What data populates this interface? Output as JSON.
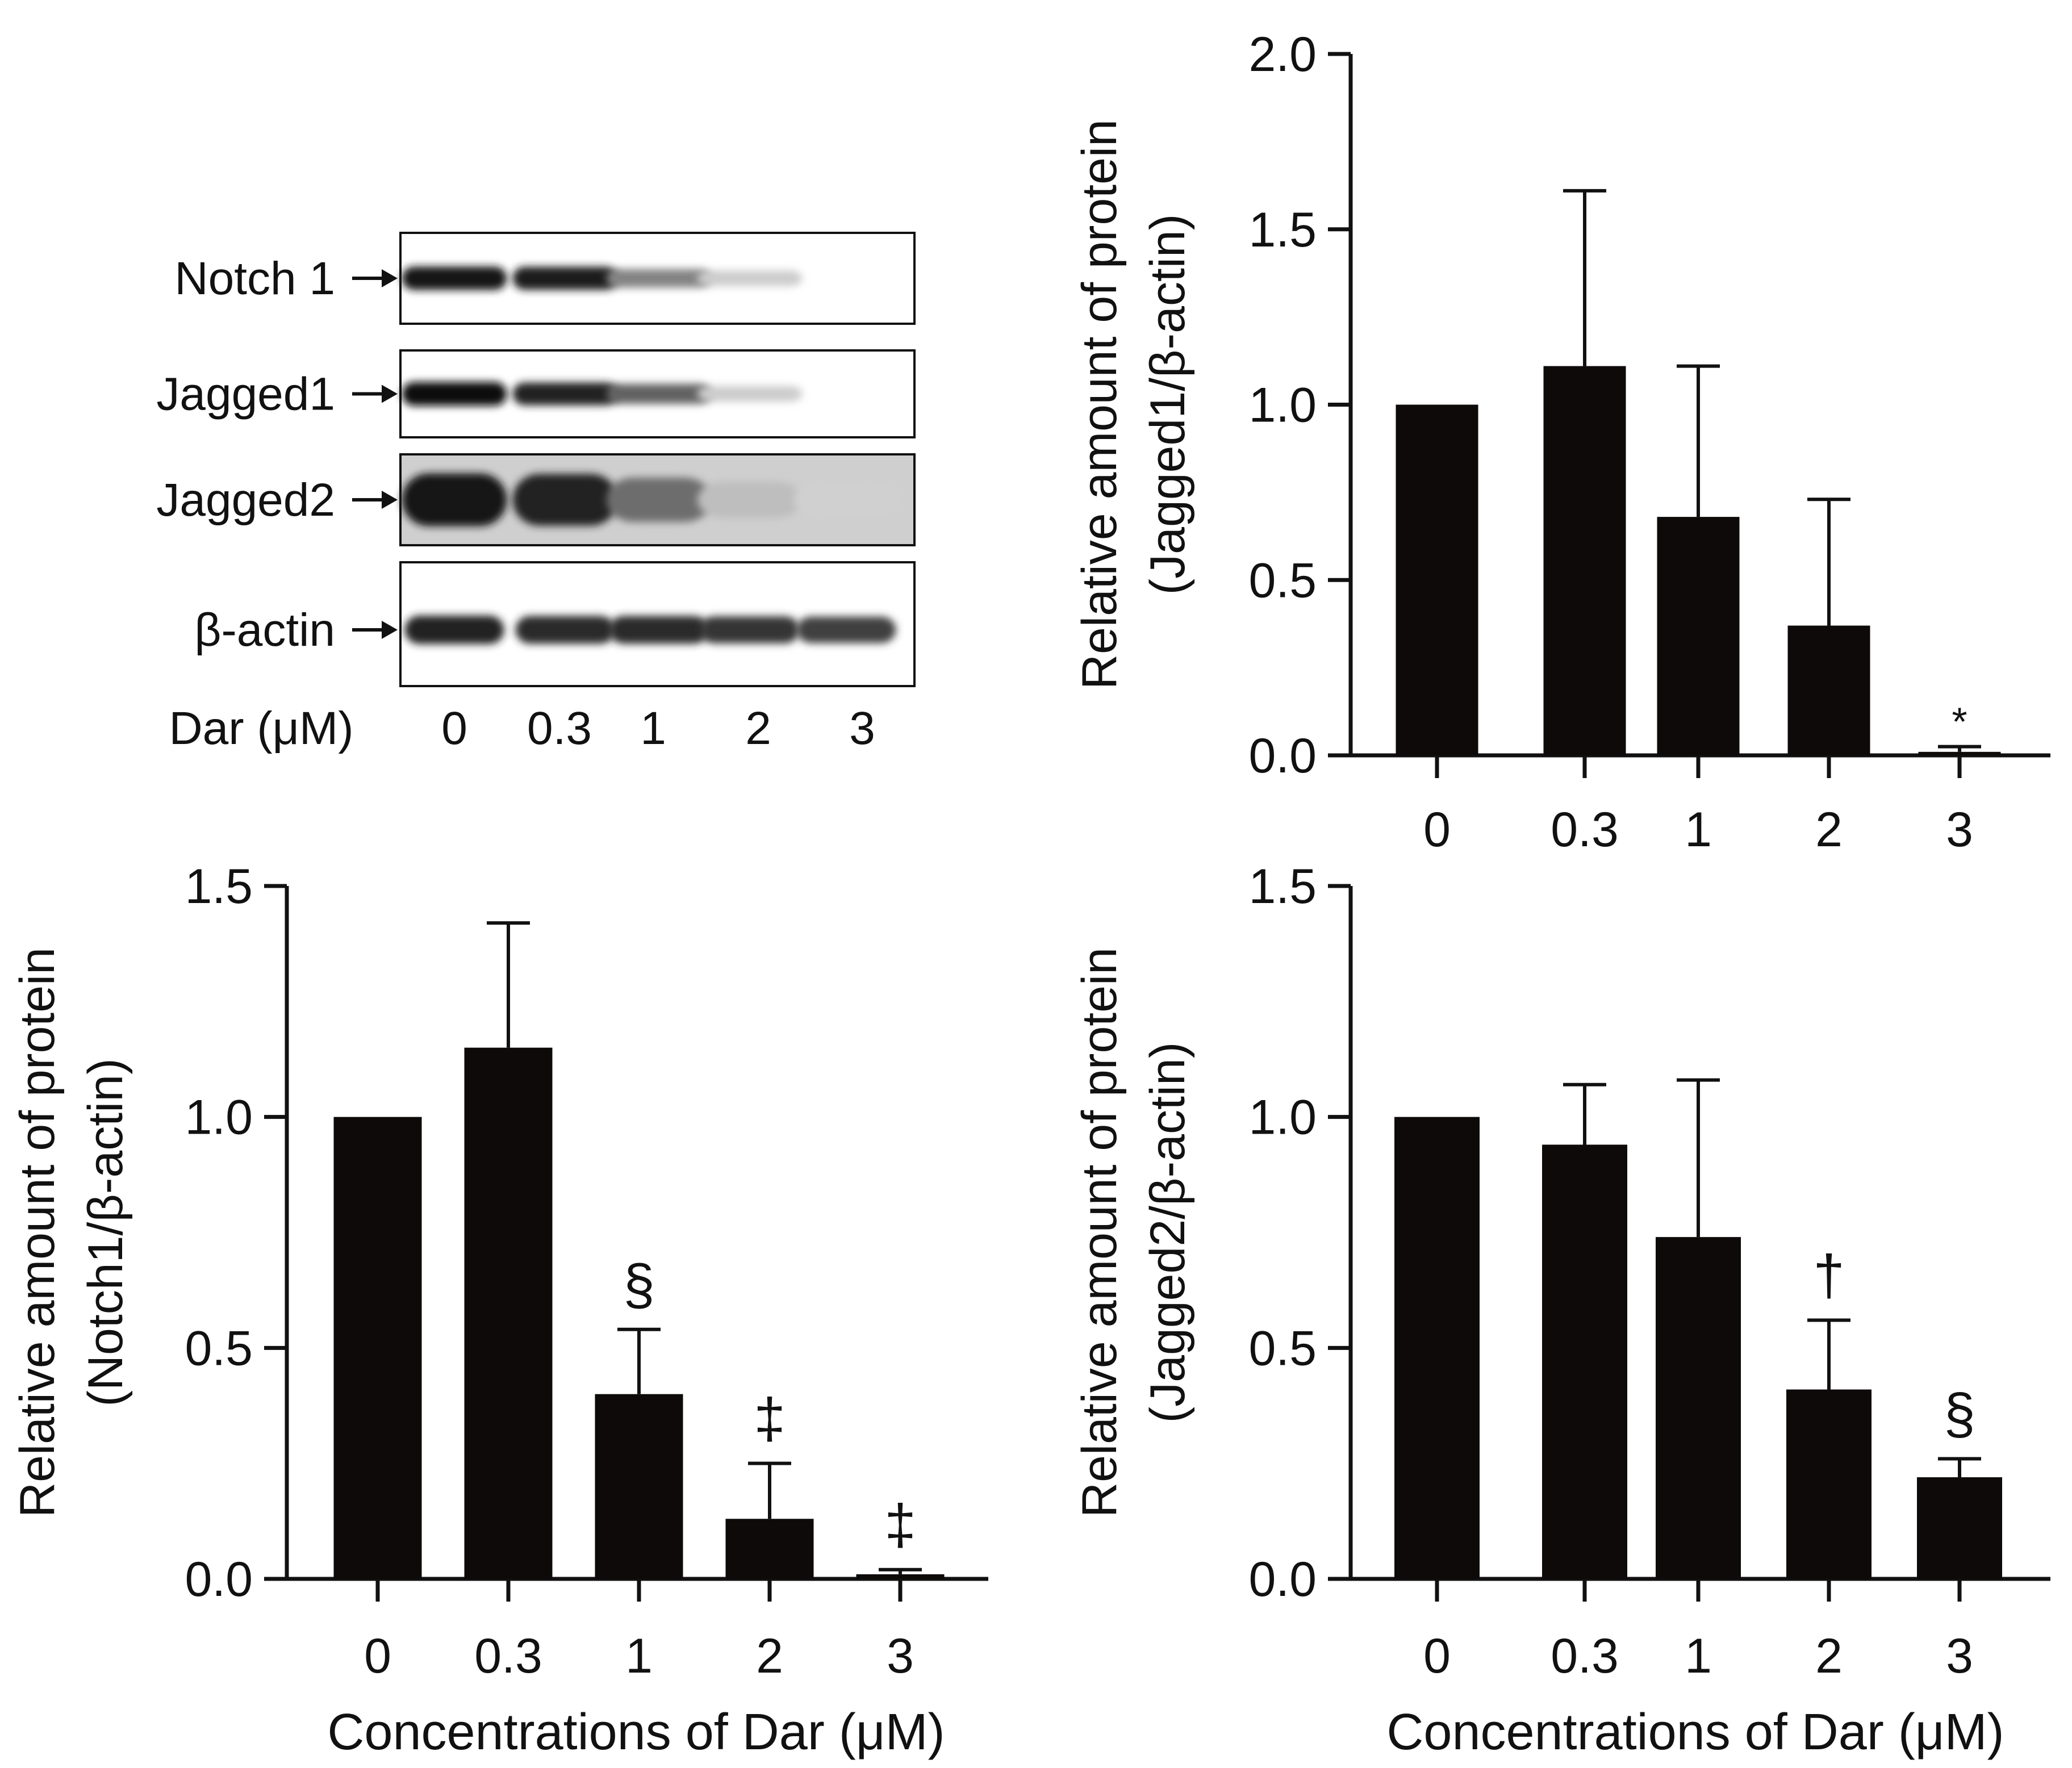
{
  "western_blot": {
    "rows": [
      {
        "label": "Notch 1",
        "intensities": [
          0.95,
          0.92,
          0.45,
          0.12,
          0.0
        ]
      },
      {
        "label": "Jagged1",
        "intensities": [
          1.0,
          0.88,
          0.6,
          0.12,
          0.0
        ]
      },
      {
        "label": "Jagged2",
        "intensities": [
          0.95,
          0.9,
          0.55,
          0.18,
          0.1
        ]
      },
      {
        "label": "β-actin",
        "intensities": [
          0.9,
          0.85,
          0.85,
          0.8,
          0.75
        ]
      }
    ],
    "lane_axis_label": "Dar (μM)",
    "lanes": [
      "0",
      "0.3",
      "1",
      "2",
      "3"
    ]
  },
  "shared_xlabel": "Concentrations of Dar (μM)",
  "chart_data": [
    {
      "id": "jagged1",
      "type": "bar",
      "categories": [
        "0",
        "0.3",
        "1",
        "2",
        "3"
      ],
      "values": [
        1.0,
        1.11,
        0.68,
        0.37,
        0.01
      ],
      "errors": [
        0.0,
        0.5,
        0.43,
        0.36,
        0.015
      ],
      "annotations": [
        "",
        "",
        "",
        "",
        "*"
      ],
      "ylabel_line1": "Relative amount of protein",
      "ylabel_line2": "(Jagged1/β-actin)",
      "xlabel": "",
      "ylim": [
        0,
        2.0
      ],
      "yticks": [
        "0.0",
        "0.5",
        "1.0",
        "1.5",
        "2.0"
      ],
      "bar_color": "#0d0a09"
    },
    {
      "id": "notch1",
      "type": "bar",
      "categories": [
        "0",
        "0.3",
        "1",
        "2",
        "3"
      ],
      "values": [
        1.0,
        1.15,
        0.4,
        0.13,
        0.01
      ],
      "errors": [
        0.0,
        0.27,
        0.14,
        0.12,
        0.01
      ],
      "annotations": [
        "",
        "",
        "§",
        "‡",
        "‡"
      ],
      "ylabel_line1": "Relative amount of protein",
      "ylabel_line2": "(Notch1/β-actin)",
      "xlabel": "Concentrations of Dar (μM)",
      "ylim": [
        0,
        1.5
      ],
      "yticks": [
        "0.0",
        "0.5",
        "1.0",
        "1.5"
      ],
      "bar_color": "#0d0a09"
    },
    {
      "id": "jagged2",
      "type": "bar",
      "categories": [
        "0",
        "0.3",
        "1",
        "2",
        "3"
      ],
      "values": [
        1.0,
        0.94,
        0.74,
        0.41,
        0.22
      ],
      "errors": [
        0.0,
        0.13,
        0.34,
        0.15,
        0.04
      ],
      "annotations": [
        "",
        "",
        "",
        "†",
        "§"
      ],
      "ylabel_line1": "Relative amount of protein",
      "ylabel_line2": "(Jagged2/β-actin)",
      "xlabel": "Concentrations of Dar (μM)",
      "ylim": [
        0,
        1.5
      ],
      "yticks": [
        "0.0",
        "0.5",
        "1.0",
        "1.5"
      ],
      "bar_color": "#0d0a09"
    }
  ]
}
